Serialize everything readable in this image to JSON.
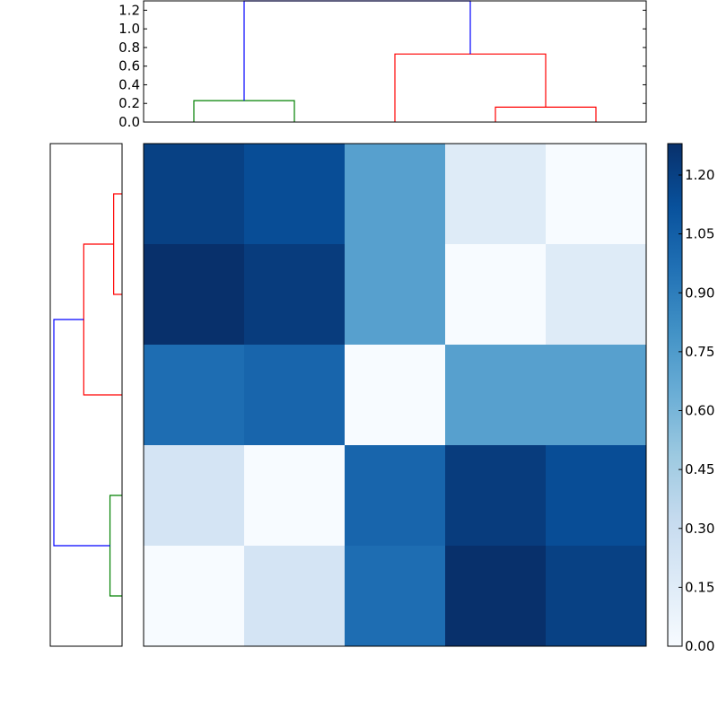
{
  "chart_data": [
    {
      "type": "dendrogram",
      "orientation": "top",
      "yticks": [
        "0.0",
        "0.2",
        "0.4",
        "0.6",
        "0.8",
        "1.0",
        "1.2"
      ],
      "ylim": [
        0,
        1.3
      ],
      "leaf_count": 5,
      "links": [
        {
          "left": 0,
          "right": 1,
          "height": 0.23,
          "left_height": 0,
          "right_height": 0,
          "color": "#008000"
        },
        {
          "left": 3,
          "right": 4,
          "height": 0.16,
          "left_height": 0,
          "right_height": 0,
          "color": "#ff0000"
        },
        {
          "left": 2,
          "right": 3.5,
          "height": 0.73,
          "left_height": 0,
          "right_height": 0.16,
          "color": "#ff0000"
        },
        {
          "left": 0.5,
          "right": 2.75,
          "height": 1.3,
          "left_height": 0.23,
          "right_height": 0.73,
          "color": "#0000ff"
        }
      ]
    },
    {
      "type": "dendrogram",
      "orientation": "left",
      "leaf_count": 5,
      "xlim": [
        1.3,
        0
      ],
      "links": [
        {
          "left": 0,
          "right": 1,
          "height": 0.23,
          "left_height": 0,
          "right_height": 0,
          "color": "#008000"
        },
        {
          "left": 3,
          "right": 4,
          "height": 0.16,
          "left_height": 0,
          "right_height": 0,
          "color": "#ff0000"
        },
        {
          "left": 2,
          "right": 3.5,
          "height": 0.73,
          "left_height": 0,
          "right_height": 0.16,
          "color": "#ff0000"
        },
        {
          "left": 0.5,
          "right": 2.75,
          "height": 1.3,
          "left_height": 0.23,
          "right_height": 0.73,
          "color": "#0000ff"
        }
      ]
    },
    {
      "type": "heatmap",
      "colormap": "Blues",
      "vmin": 0,
      "vmax": 1.28,
      "matrix": [
        [
          1.2,
          1.14,
          0.72,
          0.16,
          0.0
        ],
        [
          1.28,
          1.22,
          0.72,
          0.0,
          0.16
        ],
        [
          0.98,
          1.02,
          0.0,
          0.72,
          0.72
        ],
        [
          0.23,
          0.0,
          1.02,
          1.22,
          1.14
        ],
        [
          0.0,
          0.23,
          0.98,
          1.28,
          1.2
        ]
      ],
      "colorbar_ticks": [
        "0.00",
        "0.15",
        "0.30",
        "0.45",
        "0.60",
        "0.75",
        "0.90",
        "1.05",
        "1.20"
      ]
    }
  ]
}
